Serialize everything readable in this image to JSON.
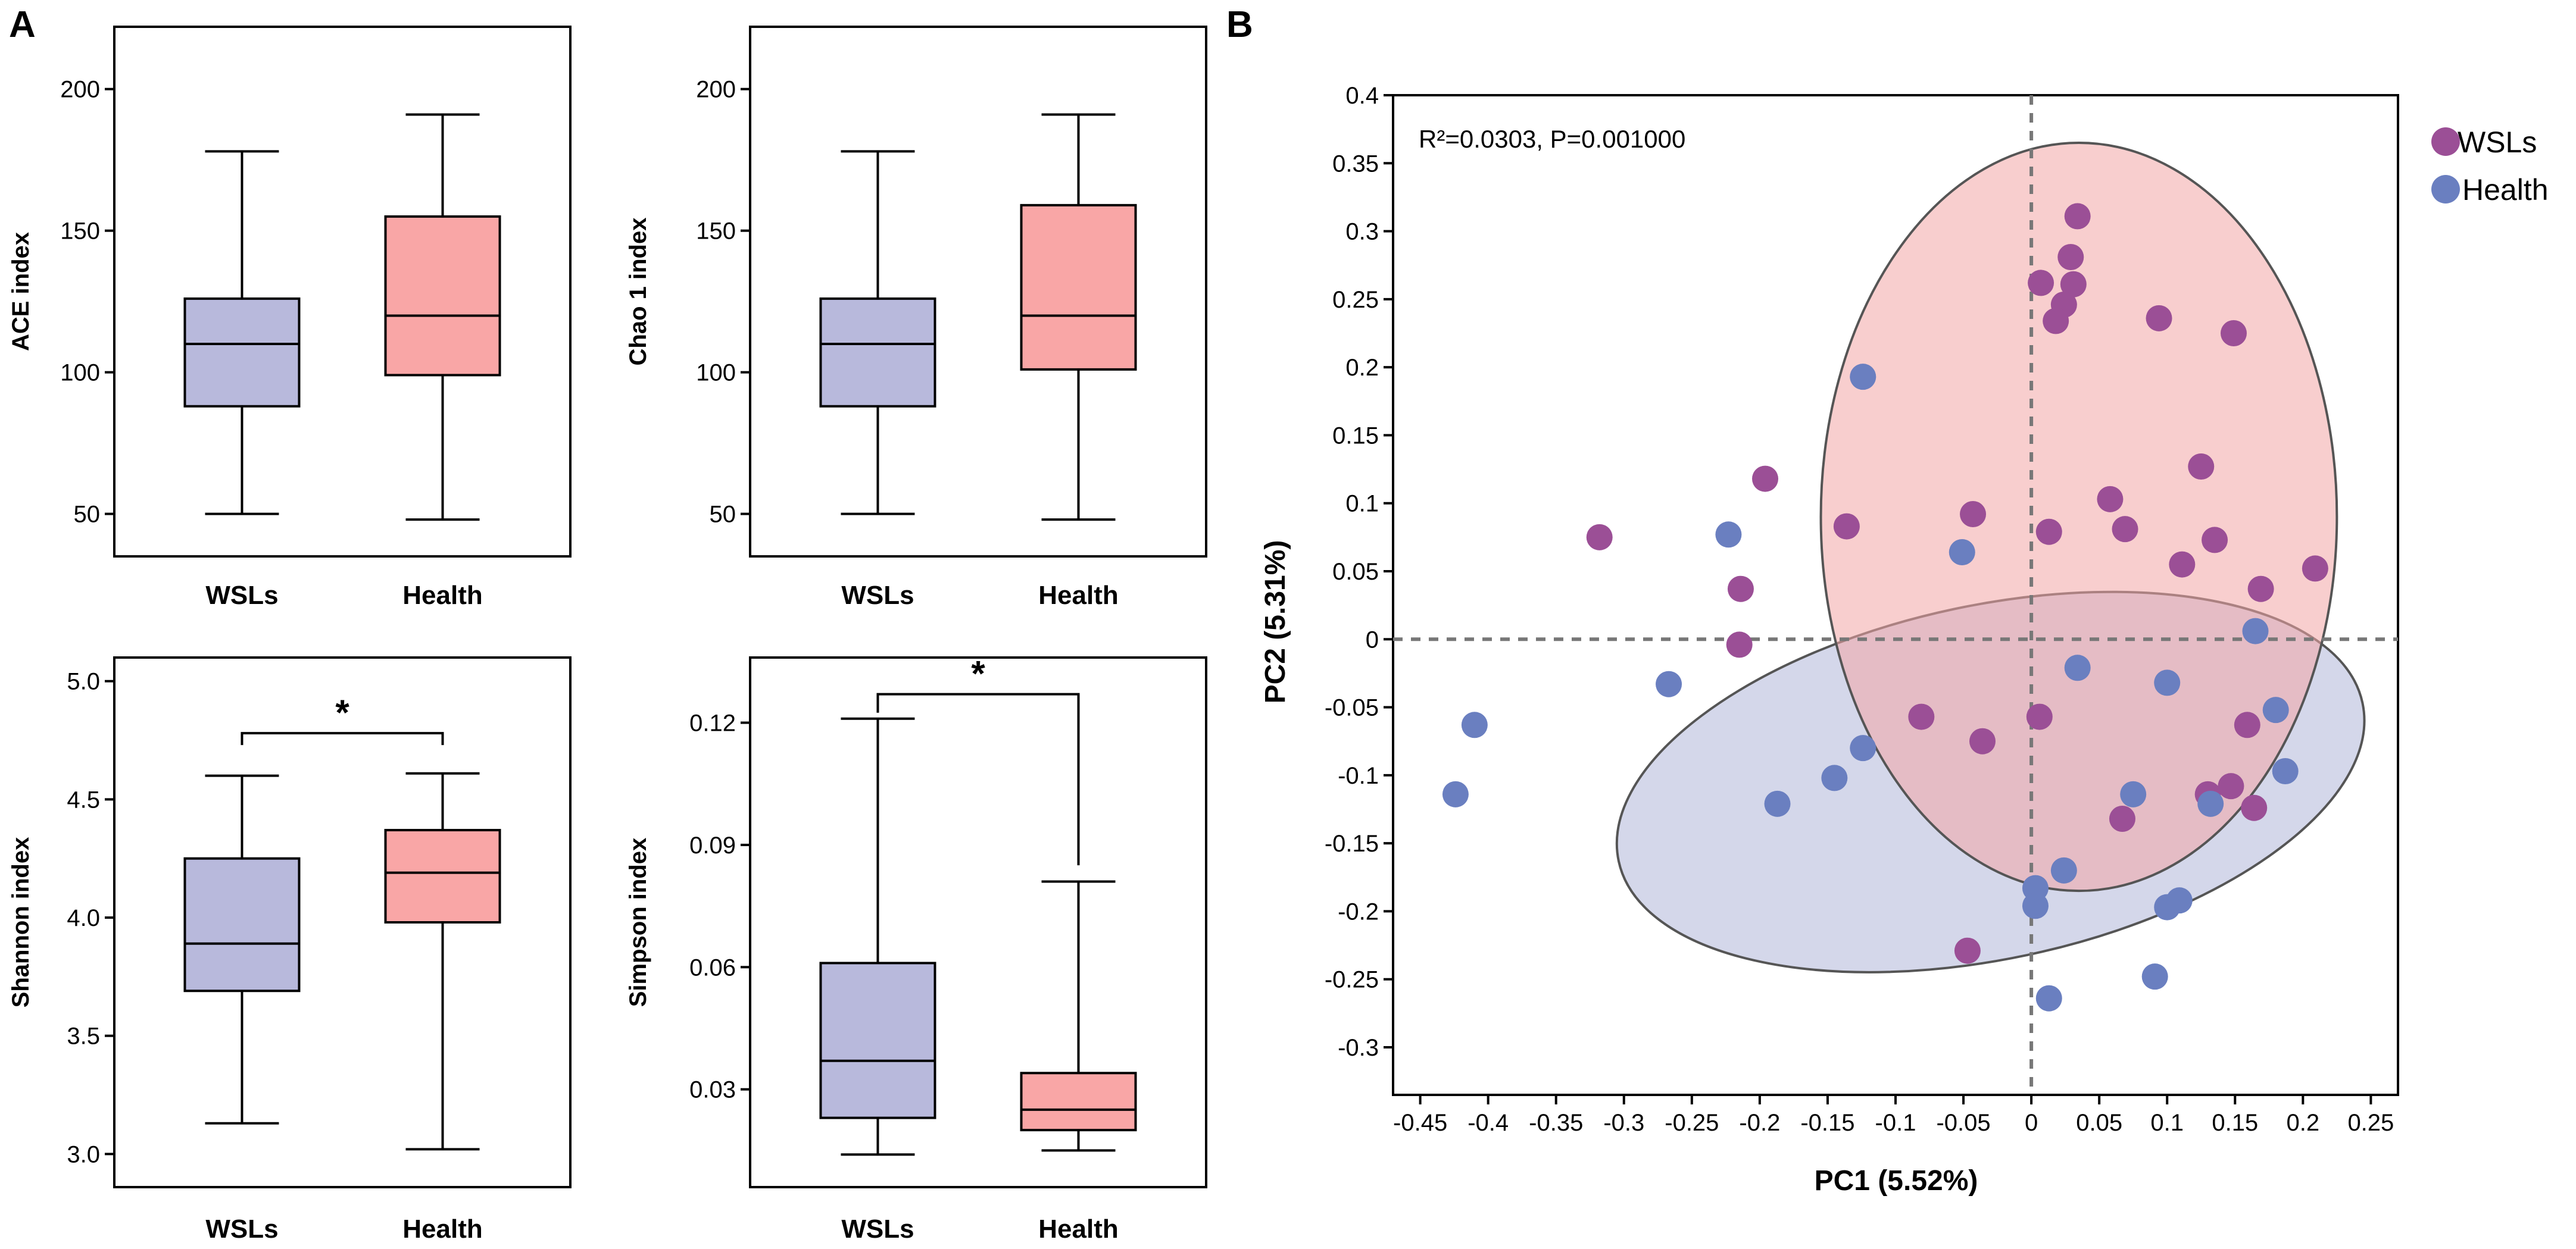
{
  "panel_labels": {
    "a": "A",
    "b": "B"
  },
  "colors": {
    "wsls_box": "#b8b9dc",
    "health_box": "#f9a6a6",
    "wsls_point": "#9b4f96",
    "health_point": "#6a7fc0",
    "wsls_ellipse": "#f2a6a6",
    "health_ellipse": "#b0b6d8"
  },
  "chart_data": [
    {
      "type": "box",
      "id": "ace",
      "ylabel": "ACE index",
      "ylim": [
        35,
        222
      ],
      "yticks": [
        50,
        100,
        150,
        200
      ],
      "ytick_labels": [
        "50",
        "100",
        "150",
        "200"
      ],
      "categories": [
        "WSLs",
        "Health"
      ],
      "boxes": [
        {
          "name": "WSLs",
          "min": 50,
          "q1": 88,
          "median": 110,
          "q3": 126,
          "max": 178
        },
        {
          "name": "Health",
          "min": 48,
          "q1": 99,
          "median": 120,
          "q3": 155,
          "max": 191
        }
      ],
      "significance": null
    },
    {
      "type": "box",
      "id": "chao1",
      "ylabel": "Chao 1 index",
      "ylim": [
        35,
        222
      ],
      "yticks": [
        50,
        100,
        150,
        200
      ],
      "ytick_labels": [
        "50",
        "100",
        "150",
        "200"
      ],
      "categories": [
        "WSLs",
        "Health"
      ],
      "boxes": [
        {
          "name": "WSLs",
          "min": 50,
          "q1": 88,
          "median": 110,
          "q3": 126,
          "max": 178
        },
        {
          "name": "Health",
          "min": 48,
          "q1": 101,
          "median": 120,
          "q3": 159,
          "max": 191
        }
      ],
      "significance": null
    },
    {
      "type": "box",
      "id": "shannon",
      "ylabel": "Shannon index",
      "ylim": [
        2.86,
        5.1
      ],
      "yticks": [
        3.0,
        3.5,
        4.0,
        4.5,
        5.0
      ],
      "ytick_labels": [
        "3.0",
        "3.5",
        "4.0",
        "4.5",
        "5.0"
      ],
      "categories": [
        "WSLs",
        "Health"
      ],
      "boxes": [
        {
          "name": "WSLs",
          "min": 3.13,
          "q1": 3.69,
          "median": 3.89,
          "q3": 4.25,
          "max": 4.6
        },
        {
          "name": "Health",
          "min": 3.02,
          "q1": 3.98,
          "median": 4.19,
          "q3": 4.37,
          "max": 4.61
        }
      ],
      "significance": {
        "text": "*",
        "bracket_value": 4.78
      }
    },
    {
      "type": "box",
      "id": "simpson",
      "ylabel": "Simpson index",
      "ylim": [
        0.006,
        0.136
      ],
      "yticks": [
        0.03,
        0.06,
        0.09,
        0.12
      ],
      "ytick_labels": [
        "0.03",
        "0.06",
        "0.09",
        "0.12"
      ],
      "categories": [
        "WSLs",
        "Health"
      ],
      "boxes": [
        {
          "name": "WSLs",
          "min": 0.014,
          "q1": 0.023,
          "median": 0.037,
          "q3": 0.061,
          "max": 0.121
        },
        {
          "name": "Health",
          "min": 0.015,
          "q1": 0.02,
          "median": 0.025,
          "q3": 0.034,
          "max": 0.081
        }
      ],
      "significance": {
        "text": "*",
        "bracket_value": 0.127,
        "health_end": 0.085
      }
    },
    {
      "type": "scatter",
      "id": "pcoa",
      "title_annotation": "R²=0.0303, P=0.001000",
      "xlabel": "PC1 (5.52%)",
      "ylabel": "PC2 (5.31%)",
      "xlim": [
        -0.47,
        0.27
      ],
      "ylim": [
        -0.335,
        0.4
      ],
      "xticks": [
        -0.45,
        -0.4,
        -0.35,
        -0.3,
        -0.25,
        -0.2,
        -0.15,
        -0.1,
        -0.05,
        0,
        0.05,
        0.1,
        0.15,
        0.2,
        0.25
      ],
      "xtick_labels": [
        "-0.45",
        "-0.4",
        "-0.35",
        "-0.3",
        "-0.25",
        "-0.2",
        "-0.15",
        "-0.1",
        "-0.05",
        "0",
        "0.05",
        "0.1",
        "0.15",
        "0.2",
        "0.25"
      ],
      "yticks": [
        -0.3,
        -0.25,
        -0.2,
        -0.15,
        -0.1,
        -0.05,
        0,
        0.05,
        0.1,
        0.15,
        0.2,
        0.25,
        0.3,
        0.35,
        0.4
      ],
      "ytick_labels": [
        "-0.3",
        "-0.25",
        "-0.2",
        "-0.15",
        "-0.1",
        "-0.05",
        "0",
        "0.05",
        "0.1",
        "0.15",
        "0.2",
        "0.25",
        "0.3",
        "0.35",
        "0.4"
      ],
      "legend": [
        "WSLs",
        "Health"
      ],
      "ellipses": [
        {
          "group": "Health",
          "cx": -0.03,
          "cy": -0.105,
          "rx": 0.28,
          "ry": 0.13,
          "angle_deg": -12
        },
        {
          "group": "WSLs",
          "cx": 0.035,
          "cy": 0.09,
          "rx": 0.19,
          "ry": 0.275,
          "angle_deg": 0
        }
      ],
      "series": [
        {
          "name": "WSLs",
          "points": [
            [
              0.034,
              0.311
            ],
            [
              0.029,
              0.281
            ],
            [
              0.031,
              0.261
            ],
            [
              0.007,
              0.262
            ],
            [
              0.024,
              0.246
            ],
            [
              0.018,
              0.234
            ],
            [
              0.094,
              0.236
            ],
            [
              0.149,
              0.225
            ],
            [
              -0.196,
              0.118
            ],
            [
              -0.318,
              0.075
            ],
            [
              -0.136,
              0.083
            ],
            [
              -0.043,
              0.092
            ],
            [
              0.058,
              0.103
            ],
            [
              0.069,
              0.081
            ],
            [
              0.125,
              0.127
            ],
            [
              0.135,
              0.073
            ],
            [
              0.013,
              0.079
            ],
            [
              0.111,
              0.055
            ],
            [
              0.169,
              0.037
            ],
            [
              0.209,
              0.052
            ],
            [
              -0.214,
              0.037
            ],
            [
              -0.215,
              -0.004
            ],
            [
              -0.081,
              -0.057
            ],
            [
              -0.036,
              -0.075
            ],
            [
              0.006,
              -0.057
            ],
            [
              0.159,
              -0.063
            ],
            [
              0.164,
              -0.124
            ],
            [
              0.147,
              -0.108
            ],
            [
              0.13,
              -0.114
            ],
            [
              0.067,
              -0.132
            ],
            [
              -0.047,
              -0.229
            ]
          ]
        },
        {
          "name": "Health",
          "points": [
            [
              -0.124,
              0.193
            ],
            [
              -0.223,
              0.077
            ],
            [
              -0.051,
              0.064
            ],
            [
              -0.267,
              -0.033
            ],
            [
              -0.41,
              -0.063
            ],
            [
              -0.424,
              -0.114
            ],
            [
              -0.187,
              -0.121
            ],
            [
              -0.145,
              -0.102
            ],
            [
              -0.124,
              -0.08
            ],
            [
              0.034,
              -0.021
            ],
            [
              0.1,
              -0.032
            ],
            [
              0.165,
              0.006
            ],
            [
              0.18,
              -0.052
            ],
            [
              0.187,
              -0.097
            ],
            [
              0.075,
              -0.114
            ],
            [
              0.132,
              -0.121
            ],
            [
              0.024,
              -0.17
            ],
            [
              0.003,
              -0.183
            ],
            [
              0.003,
              -0.196
            ],
            [
              0.1,
              -0.197
            ],
            [
              0.109,
              -0.192
            ],
            [
              0.091,
              -0.248
            ],
            [
              0.013,
              -0.264
            ]
          ]
        }
      ]
    }
  ]
}
